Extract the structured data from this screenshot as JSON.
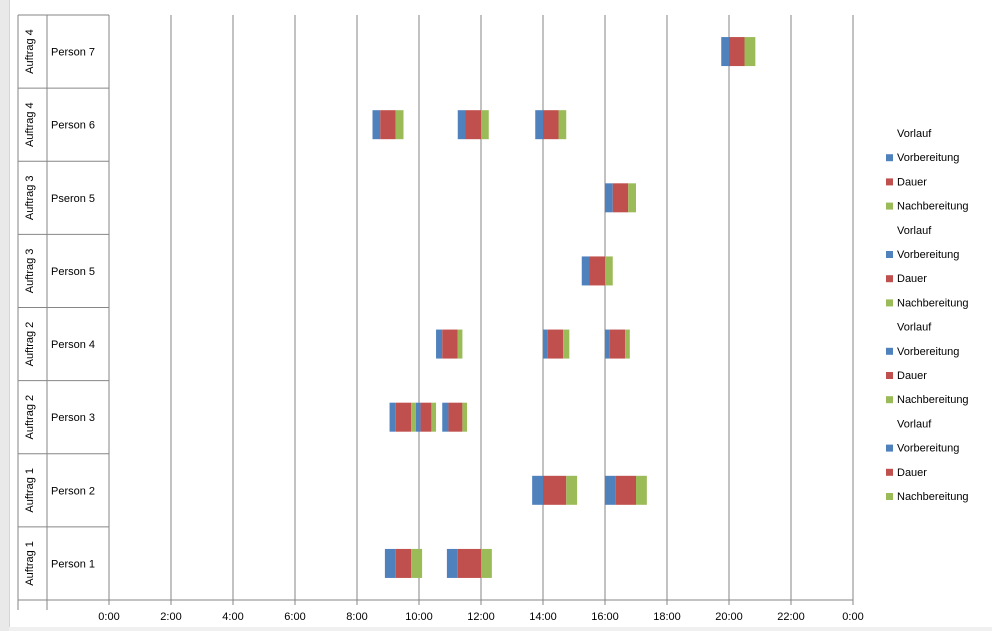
{
  "colors": {
    "Vorlauf": "#ffffff",
    "Vorbereitung": "#4f81bd",
    "Dauer": "#c0504d",
    "Nachbereitung": "#9bbb59",
    "grid": "#868686"
  },
  "chart_data": {
    "type": "bar",
    "orientation": "horizontal",
    "stacked": true,
    "xlim": [
      0,
      24
    ],
    "x_tick_labels": [
      "0:00",
      "2:00",
      "4:00",
      "6:00",
      "8:00",
      "10:00",
      "12:00",
      "14:00",
      "16:00",
      "18:00",
      "20:00",
      "22:00",
      "0:00"
    ],
    "legend_position": "right",
    "legend": [
      "Vorlauf",
      "Vorbereitung",
      "Dauer",
      "Nachbereitung",
      "Vorlauf",
      "Vorbereitung",
      "Dauer",
      "Nachbereitung",
      "Vorlauf",
      "Vorbereitung",
      "Dauer",
      "Nachbereitung",
      "Vorlauf",
      "Vorbereitung",
      "Dauer",
      "Nachbereitung"
    ],
    "rows": [
      {
        "auftrag": "Auftrag 4",
        "person": "Person 7",
        "tasks": [
          {
            "start": 19.75,
            "prep": 0.25,
            "dur": 0.5,
            "post": 0.35
          }
        ]
      },
      {
        "auftrag": "Auftrag 4",
        "person": "Person 6",
        "tasks": [
          {
            "start": 8.5,
            "prep": 0.25,
            "dur": 0.5,
            "post": 0.25
          },
          {
            "start": 11.25,
            "prep": 0.25,
            "dur": 0.5,
            "post": 0.25
          },
          {
            "start": 13.75,
            "prep": 0.25,
            "dur": 0.5,
            "post": 0.25
          }
        ]
      },
      {
        "auftrag": "Auftrag 3",
        "person": "Pseron 5",
        "tasks": [
          {
            "start": 16.0,
            "prep": 0.25,
            "dur": 0.5,
            "post": 0.25
          }
        ]
      },
      {
        "auftrag": "Auftrag 3",
        "person": "Person 5",
        "tasks": [
          {
            "start": 15.25,
            "prep": 0.25,
            "dur": 0.5,
            "post": 0.25
          }
        ]
      },
      {
        "auftrag": "Auftrag 2",
        "person": "Person 4",
        "tasks": [
          {
            "start": 10.55,
            "prep": 0.2,
            "dur": 0.5,
            "post": 0.15
          },
          {
            "start": 14.0,
            "prep": 0.15,
            "dur": 0.5,
            "post": 0.2
          },
          {
            "start": 16.0,
            "prep": 0.15,
            "dur": 0.5,
            "post": 0.15
          }
        ]
      },
      {
        "auftrag": "Auftrag 2",
        "person": "Person 3",
        "tasks": [
          {
            "start": 9.05,
            "prep": 0.2,
            "dur": 0.5,
            "post": 0.15
          },
          {
            "start": 9.9,
            "prep": 0.15,
            "dur": 0.35,
            "post": 0.15
          },
          {
            "start": 10.75,
            "prep": 0.2,
            "dur": 0.45,
            "post": 0.15
          }
        ]
      },
      {
        "auftrag": "Auftrag 1",
        "person": "Person 2",
        "tasks": [
          {
            "start": 13.65,
            "prep": 0.35,
            "dur": 0.75,
            "post": 0.35
          },
          {
            "start": 16.0,
            "prep": 0.35,
            "dur": 0.65,
            "post": 0.35
          }
        ]
      },
      {
        "auftrag": "Auftrag 1",
        "person": "Person 1",
        "tasks": [
          {
            "start": 8.9,
            "prep": 0.35,
            "dur": 0.5,
            "post": 0.35
          },
          {
            "start": 10.9,
            "prep": 0.35,
            "dur": 0.75,
            "post": 0.35
          }
        ]
      }
    ]
  }
}
